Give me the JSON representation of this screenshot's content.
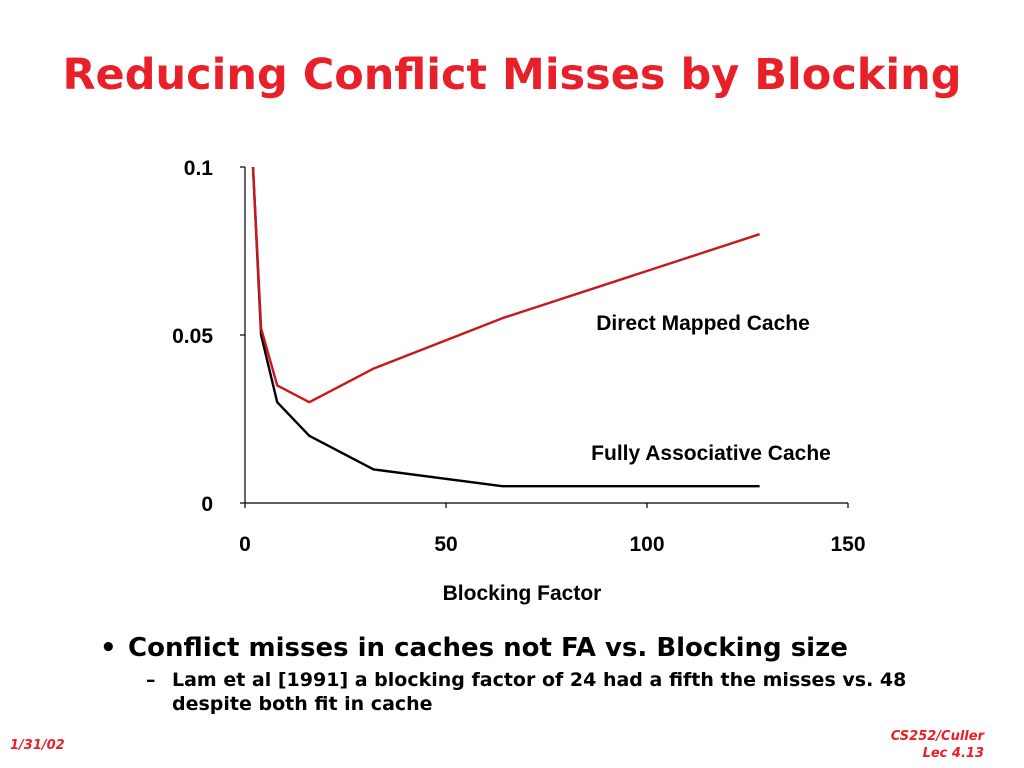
{
  "slide": {
    "title": "Reducing Conflict Misses by Blocking",
    "bullets": [
      {
        "marker": "•",
        "text": "Conflict misses in caches not FA vs. Blocking size"
      },
      {
        "marker": "–",
        "text": "Lam et al [1991] a blocking factor of 24 had a fifth the  misses vs. 48 despite both fit in cache"
      }
    ],
    "footer_date": "1/31/02",
    "footer_course": "CS252/Culler",
    "footer_lecture": "Lec 4.13"
  },
  "colors": {
    "title": "#e8202a",
    "direct_mapped": "#c8181e",
    "fully_associative": "#000000"
  },
  "chart_data": {
    "type": "line",
    "title": "",
    "xlabel": "Blocking Factor",
    "ylabel": "",
    "xlim": [
      0,
      150
    ],
    "ylim": [
      0,
      0.1
    ],
    "x_ticks": [
      "0",
      "50",
      "100",
      "150"
    ],
    "y_ticks": [
      "0",
      "0.05",
      "0.1"
    ],
    "grid": false,
    "series": [
      {
        "name": "Direct Mapped Cache",
        "color": "#c8181e",
        "x": [
          2,
          4,
          8,
          16,
          32,
          64,
          128
        ],
        "y": [
          0.1,
          0.052,
          0.035,
          0.03,
          0.04,
          0.055,
          0.08
        ]
      },
      {
        "name": "Fully Associative Cache",
        "color": "#000000",
        "x": [
          2,
          4,
          8,
          16,
          32,
          64,
          128
        ],
        "y": [
          0.1,
          0.05,
          0.03,
          0.02,
          0.01,
          0.005,
          0.005
        ]
      }
    ]
  }
}
